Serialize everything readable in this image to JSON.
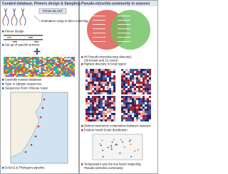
{
  "header": {
    "left_title": "Curated database, Primers design & Sampling",
    "right_title": "Pseudo-nitzschia community in seasons"
  },
  "left": {
    "blast": "Primer-BLAST",
    "evaluation": "Evaluation using in silico matching",
    "primer_design": "Primer design",
    "primer_set": "Set up of specific primers",
    "bullets": [
      "Carefully curated database",
      "Type or epitype sequences",
      "Sequences from Chinese coast"
    ],
    "pipeline": "DADA2 & Phylogeny pipeline"
  },
  "right": {
    "bullets_top": [
      "48 Pseudo-nitzschia taxa detected,",
      "(36 known and 12 novel)",
      "Highest diversity in local region"
    ],
    "bullets_mid": [
      "Distinct taxonomic composition between seasons",
      "Evident North-South distribution"
    ],
    "bullets_bottom": [
      "Temperature was the key factor impacting",
      "Pseudo-nitzschia community"
    ]
  }
}
